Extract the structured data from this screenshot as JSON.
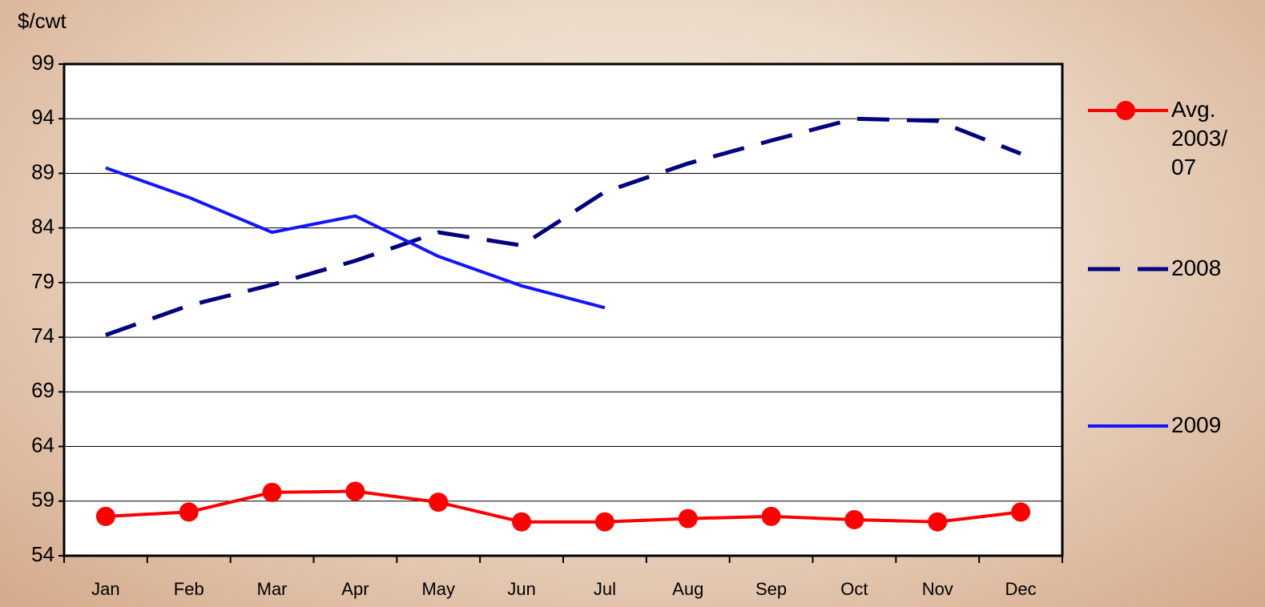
{
  "chart_data": {
    "type": "line",
    "y_label": "$/cwt",
    "categories": [
      "Jan",
      "Feb",
      "Mar",
      "Apr",
      "May",
      "Jun",
      "Jul",
      "Aug",
      "Sep",
      "Oct",
      "Nov",
      "Dec"
    ],
    "series": [
      {
        "name": "Avg. 2003/07",
        "color": "#ff0000",
        "style": "solid-markers",
        "values": [
          57.6,
          58.0,
          59.8,
          59.9,
          58.9,
          57.1,
          57.1,
          57.4,
          57.6,
          57.3,
          57.1,
          58.0
        ]
      },
      {
        "name": "2008",
        "color": "#000080",
        "style": "dashed",
        "values": [
          74.2,
          76.9,
          78.8,
          81.0,
          83.6,
          82.4,
          87.3,
          89.9,
          92.0,
          94.0,
          93.8,
          90.8
        ]
      },
      {
        "name": "2009",
        "color": "#1414ff",
        "style": "solid",
        "values": [
          89.5,
          86.8,
          83.6,
          85.1,
          81.4,
          78.7,
          76.7,
          null,
          null,
          null,
          null,
          null
        ]
      }
    ],
    "ylim": [
      54,
      99
    ],
    "yticks": [
      54,
      59,
      64,
      69,
      74,
      79,
      84,
      89,
      94,
      99
    ],
    "grid": true,
    "legend": "right"
  }
}
